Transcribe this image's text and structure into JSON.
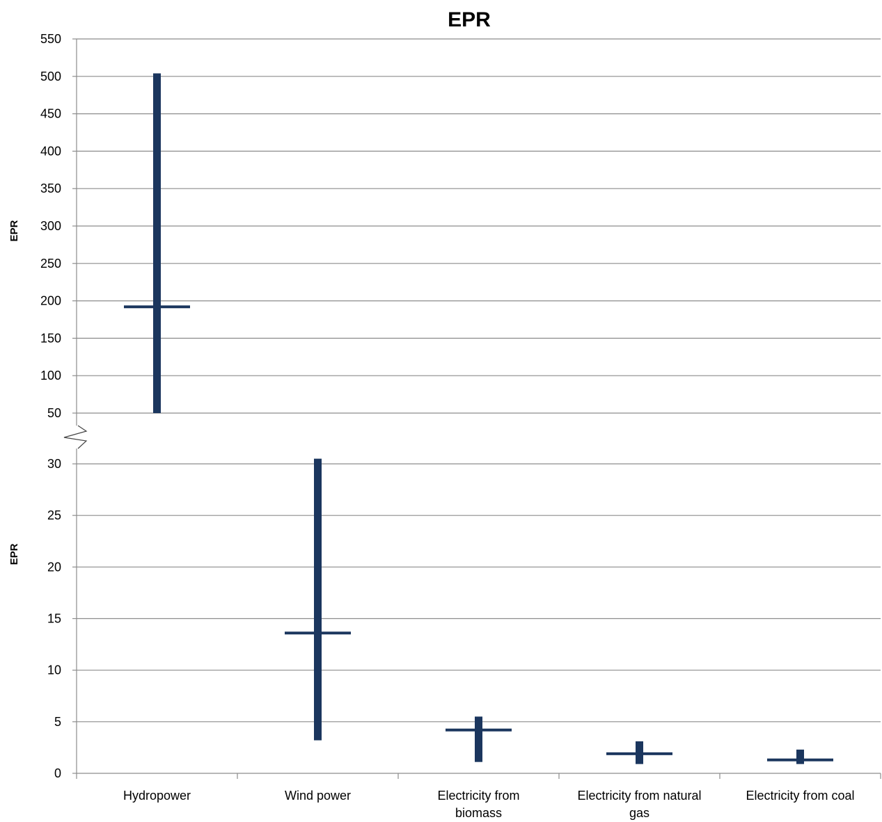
{
  "chart_data": {
    "type": "range",
    "title": "EPR",
    "ylabel": "EPR",
    "categories": [
      "Hydropower",
      "Wind power",
      "Electricity from biomass",
      "Electricity from natural gas",
      "Electricity from coal"
    ],
    "category_lines": [
      [
        "Hydropower"
      ],
      [
        "Wind power"
      ],
      [
        "Electricity from",
        "biomass"
      ],
      [
        "Electricity from natural",
        "gas"
      ],
      [
        "Electricity from coal"
      ]
    ],
    "series": [
      {
        "min": [
          50,
          3.2,
          1.1,
          0.9,
          0.9
        ],
        "max": [
          504,
          30.5,
          5.5,
          3.1,
          2.3
        ],
        "typical": [
          192,
          13.6,
          4.2,
          1.9,
          1.3
        ]
      }
    ],
    "axis_break": true,
    "upper_axis": {
      "ylim": [
        50,
        550
      ],
      "ticks": [
        50,
        100,
        150,
        200,
        250,
        300,
        350,
        400,
        450,
        500,
        550
      ]
    },
    "lower_axis": {
      "ylim": [
        0,
        30
      ],
      "ticks": [
        0,
        5,
        10,
        15,
        20,
        25,
        30
      ]
    },
    "grid": true,
    "colors": {
      "bar": "#1b365e",
      "grid": "#8c8c8c",
      "axis": "#8c8c8c"
    }
  }
}
